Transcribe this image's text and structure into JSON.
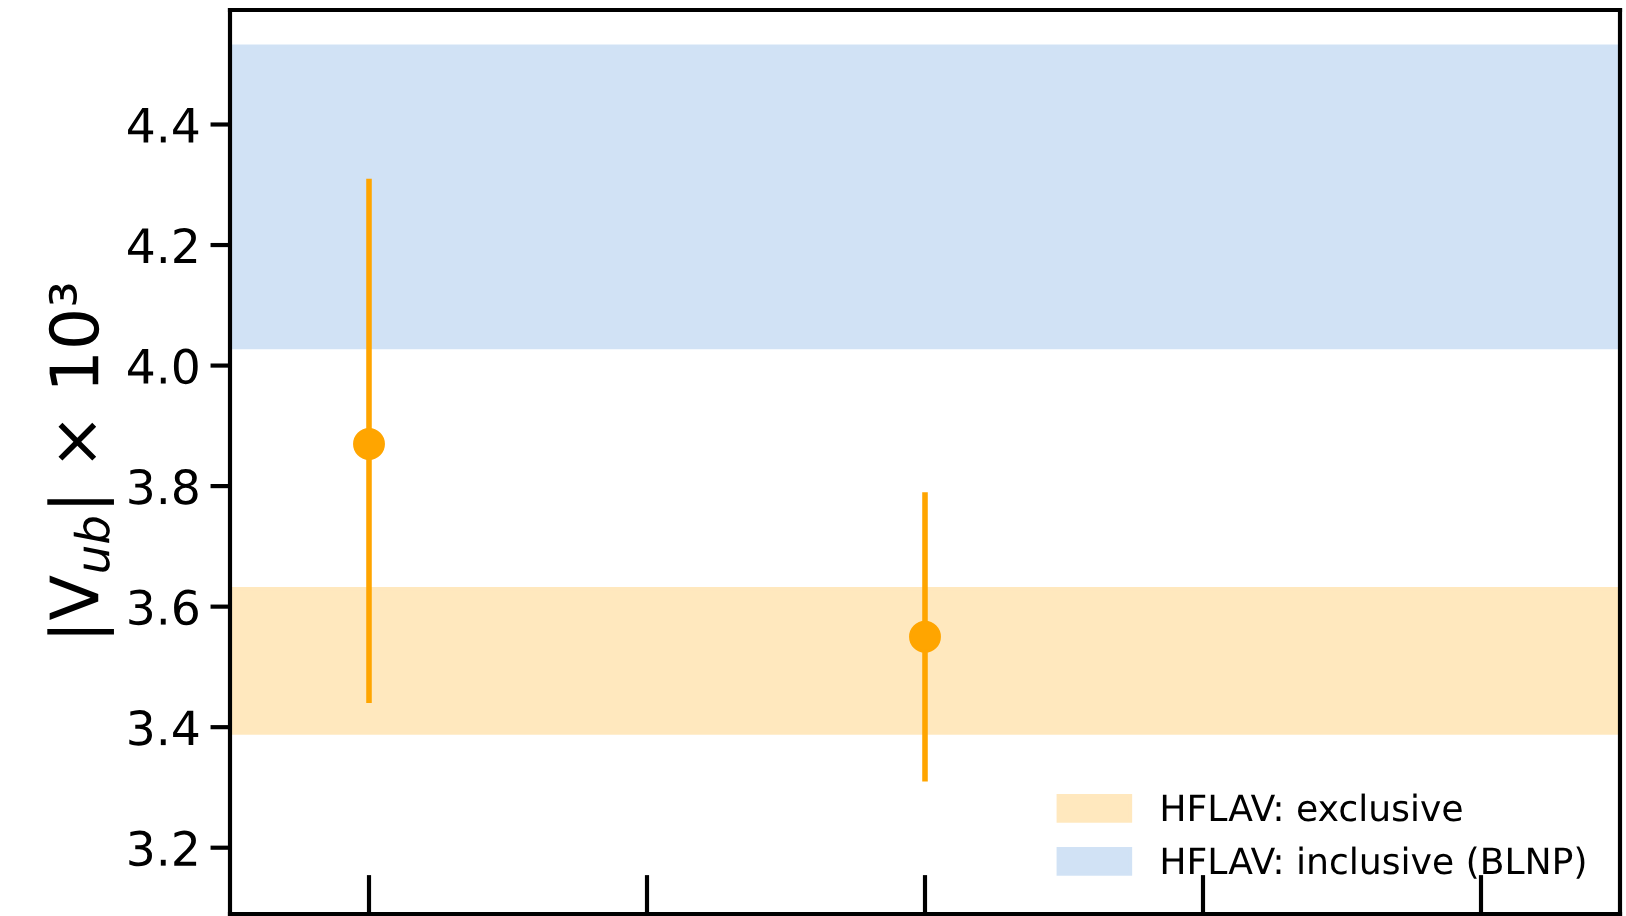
{
  "chart_data": {
    "type": "scatter",
    "ylabel": "|V$_{ub}$| × 10³",
    "categories": [
      null,
      null,
      null,
      null,
      null
    ],
    "series": [
      {
        "color": "#ffa500",
        "values": [
          3.87,
          null,
          3.55,
          null,
          null
        ],
        "errors": [
          [
            3.44,
            4.31
          ],
          null,
          [
            3.31,
            3.79
          ],
          null,
          null
        ]
      }
    ],
    "ylim": [
      3.09,
      4.59
    ],
    "yticks": [
      3.2,
      3.4,
      3.6,
      3.8,
      {
        "value": 4.0,
        "label": "4.0"
      },
      4.2,
      4.4
    ],
    "bands": [
      {
        "axis": "y",
        "from": 3.39,
        "to": 3.63,
        "label": "HFLAV: exclusive",
        "color": "#ffa500"
      },
      {
        "axis": "y",
        "from": 4.03,
        "to": 4.53,
        "label": "HFLAV: inclusive (BLNP)",
        "color": "#4a90d9"
      }
    ],
    "tick_labels": "y",
    "marker": "circle",
    "legend": "bottom right"
  }
}
